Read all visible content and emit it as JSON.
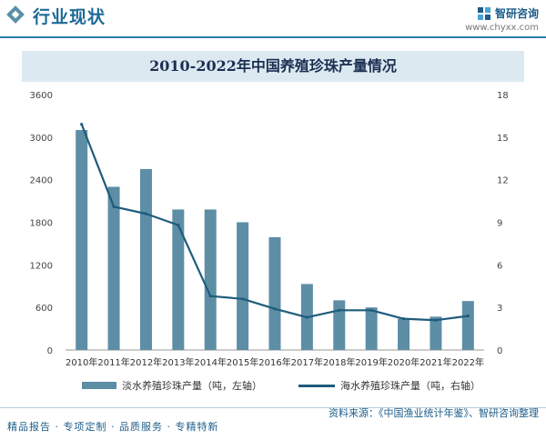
{
  "header": {
    "section_title": "行业现状",
    "brand_name": "智研咨询",
    "brand_url": "www.chyxx.com"
  },
  "footer": {
    "left": "精品报告 · 专项定制 · 品质服务 · 专精特新",
    "right": "资料来源：《中国渔业统计年鉴》、智研咨询整理"
  },
  "colors": {
    "bar": "#5d8ea5",
    "line": "#1f5c7c",
    "accent": "#1d6a96"
  },
  "chart_data": {
    "type": "bar",
    "title": "2010-2022年中国养殖珍珠产量情况",
    "categories": [
      "2010年",
      "2011年",
      "2012年",
      "2013年",
      "2014年",
      "2015年",
      "2016年",
      "2017年",
      "2018年",
      "2019年",
      "2020年",
      "2021年",
      "2022年"
    ],
    "series": [
      {
        "name": "淡水养殖珍珠产量（吨，左轴）",
        "type": "bar",
        "axis": "left",
        "values": [
          3100,
          2300,
          2550,
          1980,
          1980,
          1800,
          1590,
          930,
          700,
          600,
          440,
          470,
          690
        ]
      },
      {
        "name": "海水养殖珍珠产量（吨，右轴）",
        "type": "line",
        "axis": "right",
        "values": [
          15.9,
          10.1,
          9.6,
          8.8,
          3.8,
          3.6,
          2.9,
          2.3,
          2.8,
          2.8,
          2.2,
          2.1,
          2.4
        ]
      }
    ],
    "y_left": {
      "min": 0,
      "max": 3600,
      "ticks": [
        0,
        600,
        1200,
        1800,
        2400,
        3000,
        3600
      ]
    },
    "y_right": {
      "min": 0,
      "max": 18,
      "ticks": [
        0,
        3,
        6,
        9,
        12,
        15,
        18
      ]
    },
    "grid": false,
    "legend": "bottom"
  }
}
